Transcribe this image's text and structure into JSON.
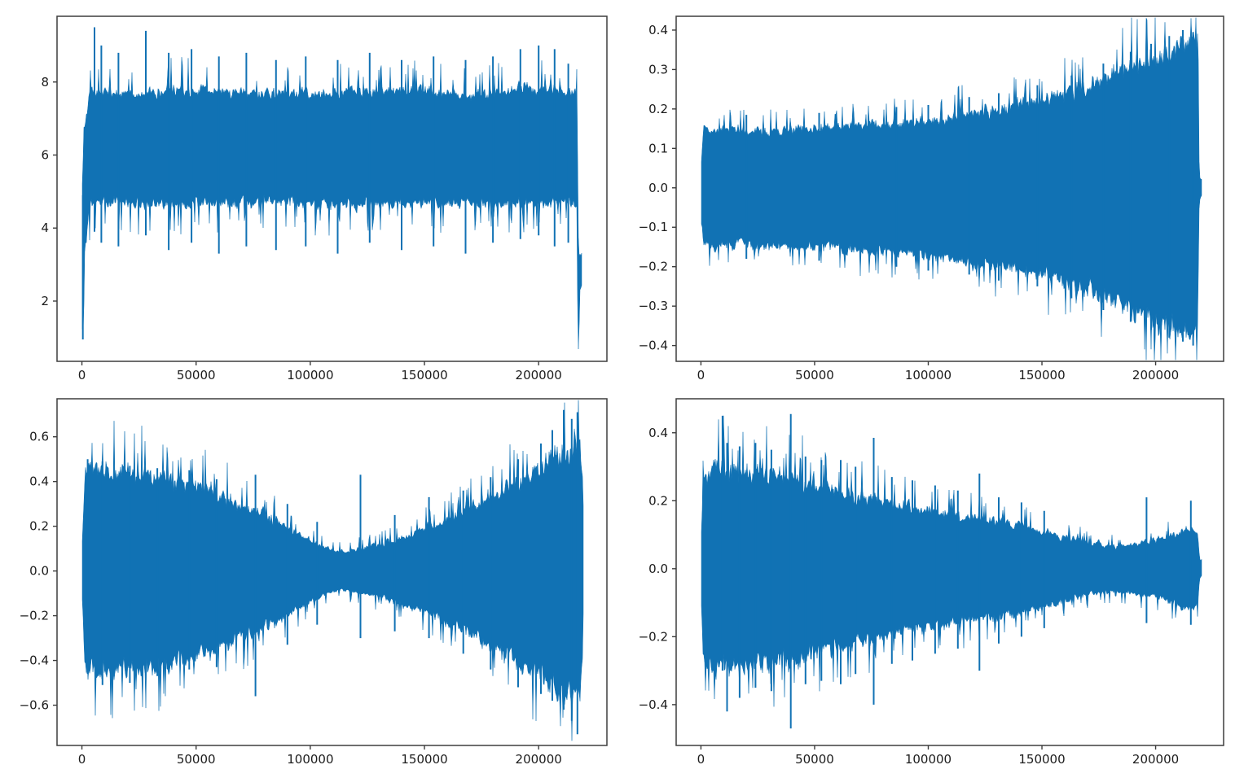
{
  "figure": {
    "background": "#ffffff",
    "rows": 2,
    "cols": 2
  },
  "style": {
    "line_color": "#1172b4",
    "spine_color": "#3d3d3d",
    "tick_color": "#3d3d3d",
    "tick_label_color": "#1c1c1c"
  },
  "chart_data": [
    {
      "type": "line",
      "name": "waveform-top-left",
      "title": "",
      "xlabel": "",
      "ylabel": "",
      "grid": false,
      "legend": null,
      "x_axis": {
        "lim": [
          -10900,
          229900
        ],
        "ticks": [
          0,
          50000,
          100000,
          150000,
          200000
        ],
        "tick_labels": [
          "0",
          "50000",
          "100000",
          "150000",
          "200000"
        ]
      },
      "y_lim": [
        0.35,
        9.8
      ],
      "y_ticks": [
        8,
        6,
        4,
        2
      ],
      "y_tick_labels": [
        "8",
        "6",
        "4",
        "2"
      ],
      "envelope": [
        [
          0,
          5.2,
          0.95
        ],
        [
          1200,
          6.8,
          3.2
        ],
        [
          3500,
          7.8,
          4.6
        ],
        [
          20000,
          7.75,
          4.65
        ],
        [
          50000,
          7.85,
          4.6
        ],
        [
          80000,
          7.7,
          4.7
        ],
        [
          110000,
          7.75,
          4.6
        ],
        [
          140000,
          7.8,
          4.65
        ],
        [
          170000,
          7.7,
          4.6
        ],
        [
          195000,
          7.85,
          4.6
        ],
        [
          210000,
          7.8,
          4.65
        ],
        [
          216500,
          7.8,
          4.55
        ],
        [
          216900,
          7.8,
          4.55
        ],
        [
          217150,
          5.5,
          0.6
        ],
        [
          217500,
          3.3,
          0.6
        ],
        [
          218100,
          3.35,
          2.3
        ],
        [
          219000,
          3.2,
          2.45
        ]
      ],
      "spikes": [
        [
          400,
          4.9,
          0.95
        ],
        [
          5500,
          9.5,
          3.9
        ],
        [
          8500,
          9.0,
          3.6
        ],
        [
          16000,
          8.8,
          3.5
        ],
        [
          28000,
          9.4,
          3.8
        ],
        [
          38000,
          8.8,
          3.4
        ],
        [
          48000,
          8.9,
          3.6
        ],
        [
          60000,
          8.7,
          3.3
        ],
        [
          72000,
          8.8,
          3.5
        ],
        [
          85000,
          8.6,
          3.4
        ],
        [
          98000,
          8.7,
          3.5
        ],
        [
          112000,
          8.6,
          3.3
        ],
        [
          126000,
          8.8,
          3.6
        ],
        [
          140000,
          8.6,
          3.4
        ],
        [
          154000,
          8.7,
          3.5
        ],
        [
          168000,
          8.6,
          3.3
        ],
        [
          180000,
          8.7,
          3.6
        ],
        [
          192000,
          8.9,
          3.7
        ],
        [
          200000,
          9.0,
          3.8
        ],
        [
          207000,
          8.9,
          3.5
        ],
        [
          213000,
          8.5,
          3.6
        ]
      ],
      "noise": {
        "base": 0.78,
        "range": 0.3,
        "spike_p": 0.1,
        "spike_gain": 0.38
      }
    },
    {
      "type": "line",
      "name": "waveform-top-right",
      "title": "",
      "xlabel": "",
      "ylabel": "",
      "grid": false,
      "legend": null,
      "x_axis": {
        "lim": [
          -10900,
          229900
        ],
        "ticks": [
          0,
          50000,
          100000,
          150000,
          200000
        ],
        "tick_labels": [
          "0",
          "50000",
          "100000",
          "150000",
          "200000"
        ]
      },
      "y_lim": [
        -0.44,
        0.435
      ],
      "y_ticks": [
        0.4,
        0.3,
        0.2,
        0.1,
        0.0,
        -0.1,
        -0.2,
        -0.3,
        -0.4
      ],
      "y_tick_labels": [
        "0.4",
        "0.3",
        "0.2",
        "0.1",
        "0.0",
        "−0.1",
        "−0.2",
        "−0.3",
        "−0.4"
      ],
      "envelope": [
        [
          0,
          0.05,
          -0.05
        ],
        [
          1200,
          0.155,
          -0.155
        ],
        [
          15000,
          0.15,
          -0.15
        ],
        [
          30000,
          0.15,
          -0.15
        ],
        [
          45000,
          0.155,
          -0.155
        ],
        [
          60000,
          0.16,
          -0.16
        ],
        [
          75000,
          0.165,
          -0.165
        ],
        [
          90000,
          0.17,
          -0.17
        ],
        [
          105000,
          0.18,
          -0.18
        ],
        [
          120000,
          0.195,
          -0.195
        ],
        [
          135000,
          0.21,
          -0.21
        ],
        [
          150000,
          0.23,
          -0.23
        ],
        [
          162000,
          0.25,
          -0.25
        ],
        [
          172000,
          0.27,
          -0.27
        ],
        [
          182000,
          0.3,
          -0.3
        ],
        [
          192000,
          0.325,
          -0.325
        ],
        [
          200000,
          0.345,
          -0.345
        ],
        [
          208000,
          0.365,
          -0.365
        ],
        [
          214000,
          0.38,
          -0.38
        ],
        [
          218500,
          0.385,
          -0.385
        ],
        [
          219200,
          0.03,
          -0.03
        ],
        [
          220500,
          0.02,
          -0.02
        ]
      ],
      "spikes": [
        [
          20000,
          0.185,
          -0.18
        ],
        [
          52000,
          0.19,
          -0.185
        ],
        [
          86000,
          0.205,
          -0.2
        ],
        [
          100000,
          0.21,
          -0.21
        ],
        [
          118000,
          0.23,
          -0.22
        ],
        [
          131000,
          0.24,
          -0.235
        ],
        [
          148000,
          0.26,
          -0.25
        ],
        [
          163000,
          0.285,
          -0.28
        ],
        [
          177000,
          0.315,
          -0.31
        ],
        [
          189000,
          0.345,
          -0.34
        ],
        [
          198000,
          0.365,
          -0.36
        ],
        [
          206000,
          0.385,
          -0.38
        ],
        [
          212000,
          0.4,
          -0.39
        ],
        [
          216500,
          0.395,
          -0.4
        ]
      ],
      "noise": {
        "base": 0.8,
        "range": 0.26,
        "spike_p": 0.09,
        "spike_gain": 0.25
      }
    },
    {
      "type": "line",
      "name": "waveform-bottom-left",
      "title": "",
      "xlabel": "",
      "ylabel": "",
      "grid": false,
      "legend": null,
      "x_axis": {
        "lim": [
          -10900,
          229900
        ],
        "ticks": [
          0,
          50000,
          100000,
          150000,
          200000
        ],
        "tick_labels": [
          "0",
          "50000",
          "100000",
          "150000",
          "200000"
        ]
      },
      "y_lim": [
        -0.78,
        0.77
      ],
      "y_ticks": [
        0.6,
        0.4,
        0.2,
        0.0,
        -0.2,
        -0.4,
        -0.6
      ],
      "y_tick_labels": [
        "0.6",
        "0.4",
        "0.2",
        "0.0",
        "−0.2",
        "−0.4",
        "−0.6"
      ],
      "envelope": [
        [
          0,
          0.1,
          -0.1
        ],
        [
          1500,
          0.46,
          -0.46
        ],
        [
          6000,
          0.48,
          -0.48
        ],
        [
          15000,
          0.47,
          -0.47
        ],
        [
          25000,
          0.455,
          -0.455
        ],
        [
          35000,
          0.44,
          -0.44
        ],
        [
          45000,
          0.41,
          -0.41
        ],
        [
          55000,
          0.38,
          -0.38
        ],
        [
          63000,
          0.34,
          -0.34
        ],
        [
          70000,
          0.31,
          -0.31
        ],
        [
          78000,
          0.27,
          -0.27
        ],
        [
          86000,
          0.23,
          -0.23
        ],
        [
          94000,
          0.18,
          -0.18
        ],
        [
          101000,
          0.14,
          -0.14
        ],
        [
          107000,
          0.105,
          -0.105
        ],
        [
          113000,
          0.09,
          -0.09
        ],
        [
          119000,
          0.1,
          -0.1
        ],
        [
          126000,
          0.115,
          -0.115
        ],
        [
          133000,
          0.13,
          -0.13
        ],
        [
          141000,
          0.16,
          -0.16
        ],
        [
          149000,
          0.19,
          -0.19
        ],
        [
          157000,
          0.225,
          -0.225
        ],
        [
          165000,
          0.265,
          -0.265
        ],
        [
          173000,
          0.31,
          -0.31
        ],
        [
          181000,
          0.36,
          -0.36
        ],
        [
          189000,
          0.41,
          -0.41
        ],
        [
          197000,
          0.46,
          -0.46
        ],
        [
          204000,
          0.51,
          -0.51
        ],
        [
          210000,
          0.56,
          -0.56
        ],
        [
          215000,
          0.6,
          -0.6
        ],
        [
          218000,
          0.58,
          -0.58
        ],
        [
          219200,
          0.4,
          -0.4
        ],
        [
          219900,
          0.04,
          -0.04
        ]
      ],
      "spikes": [
        [
          2500,
          0.5,
          -0.46
        ],
        [
          9000,
          0.49,
          -0.51
        ],
        [
          21000,
          0.47,
          -0.5
        ],
        [
          33000,
          0.46,
          -0.47
        ],
        [
          47000,
          0.45,
          -0.44
        ],
        [
          59000,
          0.41,
          -0.43
        ],
        [
          76000,
          0.43,
          -0.56
        ],
        [
          90000,
          0.3,
          -0.33
        ],
        [
          103000,
          0.22,
          -0.24
        ],
        [
          122000,
          0.43,
          -0.3
        ],
        [
          137000,
          0.25,
          -0.27
        ],
        [
          152000,
          0.33,
          -0.3
        ],
        [
          167000,
          0.36,
          -0.37
        ],
        [
          179000,
          0.42,
          -0.44
        ],
        [
          191000,
          0.5,
          -0.52
        ],
        [
          201000,
          0.57,
          -0.55
        ],
        [
          206000,
          0.63,
          -0.58
        ],
        [
          211000,
          0.72,
          -0.62
        ],
        [
          214500,
          0.68,
          -0.67
        ],
        [
          217000,
          0.71,
          -0.73
        ]
      ],
      "noise": {
        "base": 0.76,
        "range": 0.3,
        "spike_p": 0.1,
        "spike_gain": 0.3
      }
    },
    {
      "type": "line",
      "name": "waveform-bottom-right",
      "title": "",
      "xlabel": "",
      "ylabel": "",
      "grid": false,
      "legend": null,
      "x_axis": {
        "lim": [
          -10900,
          229900
        ],
        "ticks": [
          0,
          50000,
          100000,
          150000,
          200000
        ],
        "tick_labels": [
          "0",
          "50000",
          "100000",
          "150000",
          "200000"
        ]
      },
      "y_lim": [
        -0.52,
        0.5
      ],
      "y_ticks": [
        0.4,
        0.2,
        0.0,
        -0.2,
        -0.4
      ],
      "y_tick_labels": [
        "0.4",
        "0.2",
        "0.0",
        "−0.2",
        "−0.4"
      ],
      "envelope": [
        [
          0,
          0.07,
          -0.07
        ],
        [
          1000,
          0.27,
          -0.27
        ],
        [
          4000,
          0.3,
          -0.3
        ],
        [
          9000,
          0.315,
          -0.315
        ],
        [
          14000,
          0.305,
          -0.305
        ],
        [
          20000,
          0.3,
          -0.3
        ],
        [
          27000,
          0.295,
          -0.295
        ],
        [
          34000,
          0.285,
          -0.285
        ],
        [
          41000,
          0.28,
          -0.28
        ],
        [
          48000,
          0.265,
          -0.265
        ],
        [
          55000,
          0.25,
          -0.25
        ],
        [
          62000,
          0.24,
          -0.24
        ],
        [
          69000,
          0.225,
          -0.225
        ],
        [
          76000,
          0.215,
          -0.215
        ],
        [
          83000,
          0.205,
          -0.205
        ],
        [
          90000,
          0.195,
          -0.195
        ],
        [
          98000,
          0.185,
          -0.185
        ],
        [
          106000,
          0.175,
          -0.175
        ],
        [
          114000,
          0.165,
          -0.165
        ],
        [
          122000,
          0.155,
          -0.155
        ],
        [
          130000,
          0.148,
          -0.148
        ],
        [
          138000,
          0.138,
          -0.138
        ],
        [
          146000,
          0.125,
          -0.125
        ],
        [
          154000,
          0.11,
          -0.11
        ],
        [
          162000,
          0.095,
          -0.095
        ],
        [
          169000,
          0.082,
          -0.082
        ],
        [
          176000,
          0.072,
          -0.072
        ],
        [
          183000,
          0.07,
          -0.07
        ],
        [
          190000,
          0.075,
          -0.075
        ],
        [
          197000,
          0.085,
          -0.085
        ],
        [
          204000,
          0.095,
          -0.095
        ],
        [
          210000,
          0.11,
          -0.11
        ],
        [
          215000,
          0.125,
          -0.125
        ],
        [
          218500,
          0.115,
          -0.115
        ],
        [
          219300,
          0.03,
          -0.03
        ],
        [
          220500,
          0.02,
          -0.02
        ]
      ],
      "spikes": [
        [
          9500,
          0.45,
          -0.3
        ],
        [
          11500,
          0.37,
          -0.42
        ],
        [
          17000,
          0.36,
          -0.38
        ],
        [
          24000,
          0.37,
          -0.35
        ],
        [
          31000,
          0.35,
          -0.36
        ],
        [
          39500,
          0.455,
          -0.47
        ],
        [
          46000,
          0.33,
          -0.34
        ],
        [
          53000,
          0.32,
          -0.33
        ],
        [
          61500,
          0.32,
          -0.34
        ],
        [
          68000,
          0.3,
          -0.31
        ],
        [
          76000,
          0.385,
          -0.4
        ],
        [
          84000,
          0.27,
          -0.28
        ],
        [
          93000,
          0.26,
          -0.27
        ],
        [
          103000,
          0.245,
          -0.25
        ],
        [
          113000,
          0.23,
          -0.235
        ],
        [
          122500,
          0.28,
          -0.3
        ],
        [
          131000,
          0.21,
          -0.22
        ],
        [
          141000,
          0.195,
          -0.2
        ],
        [
          151000,
          0.17,
          -0.175
        ],
        [
          196000,
          0.21,
          -0.16
        ],
        [
          215500,
          0.2,
          -0.165
        ]
      ],
      "noise": {
        "base": 0.76,
        "range": 0.3,
        "spike_p": 0.1,
        "spike_gain": 0.3
      }
    }
  ]
}
